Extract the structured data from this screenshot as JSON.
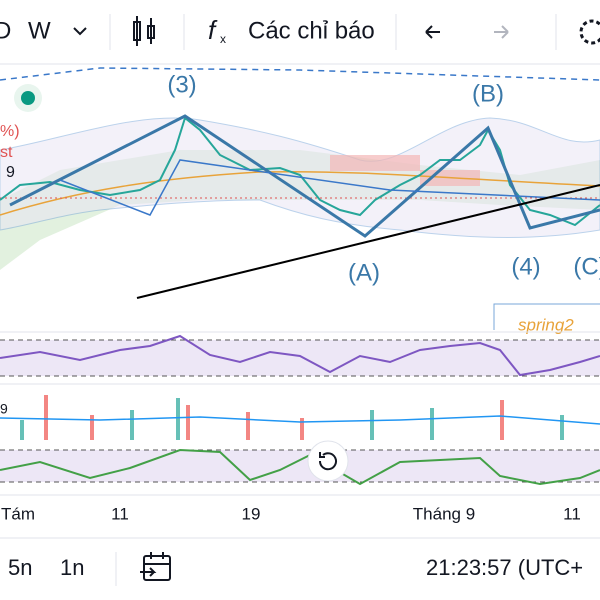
{
  "toolbar": {
    "interval_d": "D",
    "interval_w": "W",
    "indicators": "Các chỉ báo"
  },
  "chart": {
    "left_labels": [
      "%)",
      "st",
      "9"
    ],
    "waves": [
      "(3)",
      "(B)",
      "(A)",
      "(4)",
      "(C)"
    ],
    "note": "spring2",
    "volume_label": "9"
  },
  "x_axis": {
    "labels": [
      "Tám",
      "11",
      "19",
      "Tháng 9",
      "11"
    ]
  },
  "bottom_bar": {
    "ranges": [
      "5n",
      "1n"
    ],
    "time": "21:23:57 (UTC+"
  }
}
